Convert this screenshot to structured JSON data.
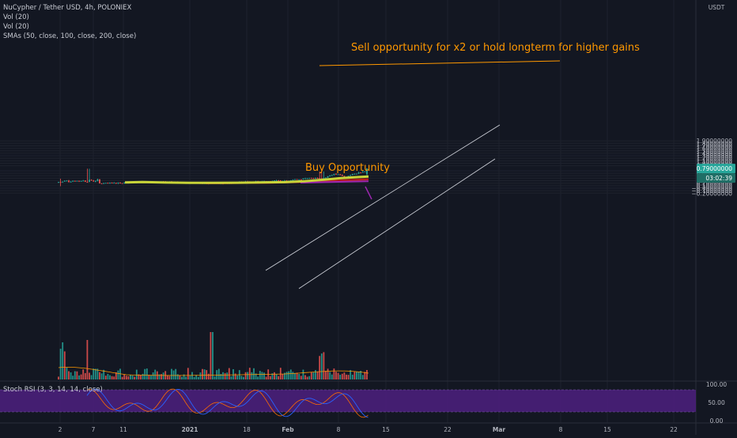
{
  "legend": {
    "title": "NuCypher / Tether USD, 4h, POLONIEX",
    "vol1": "Vol (20)",
    "vol2": "Vol (20)",
    "smas": "SMAs (50, close, 100, close, 200, close)"
  },
  "annotations": {
    "sell_text": "Sell opportunity for x2 or hold longterm for higher gains",
    "buy_text": "Buy Opportunity"
  },
  "price_axis": {
    "unit": "USDT",
    "ticks": [
      "1.90000000",
      "1.80000000",
      "1.70000000",
      "1.60000000",
      "1.50000000",
      "1.40000000",
      "1.30000000",
      "1.20000000",
      "1.10000000",
      "1.00000000",
      "0.90000000",
      "0.70000000",
      "0.60000000",
      "0.50000000",
      "0.40000000",
      "0.30000000",
      "0.20000000",
      "0.10000000",
      "−0.00000000",
      "−0.10000000",
      "−0.20000000"
    ],
    "last_price": "0.79000000",
    "countdown": "03:02:39",
    "tick_values": [
      1.9,
      1.8,
      1.7,
      1.6,
      1.5,
      1.4,
      1.3,
      1.2,
      1.1,
      1.0,
      0.9,
      0.7,
      0.6,
      0.5,
      0.4,
      0.3,
      0.2,
      0.1,
      0.0,
      -0.1,
      -0.2
    ]
  },
  "rsi": {
    "title": "Stoch RSI (3, 3, 14, 14, close)",
    "ticks": [
      "100.00",
      "50.00",
      "0.00"
    ]
  },
  "time_axis": {
    "labels": [
      "2",
      "7",
      "11",
      "2021",
      "18",
      "Feb",
      "8",
      "15",
      "22",
      "Mar",
      "8",
      "15",
      "22"
    ]
  },
  "colors": {
    "background": "#131722",
    "up": "#26a69a",
    "down": "#ef5350",
    "sma50": "#c8d439",
    "sma100": "#b71c1c",
    "sma200": "#9c27b0",
    "annotation": "#ff9800",
    "rsi_k": "#2962ff",
    "rsi_d": "#ff6d00",
    "rsi_band": "#4a1f7a"
  },
  "chart_data": {
    "type": "candlestick",
    "title": "NuCypher / Tether USD, 4h, POLONIEX",
    "ylabel": "USDT",
    "ylim": [
      -0.25,
      1.9
    ],
    "last_close": 0.79,
    "series": [
      {
        "name": "SMAs (50, close, 100, close, 200, close)",
        "points": [
          [
            0.24,
            0.22
          ],
          [
            0.3,
            0.22
          ],
          [
            0.4,
            0.22
          ],
          [
            0.5,
            0.24
          ],
          [
            0.6,
            0.28
          ],
          [
            0.7,
            0.35
          ],
          [
            0.8,
            0.45
          ]
        ]
      }
    ]
  }
}
